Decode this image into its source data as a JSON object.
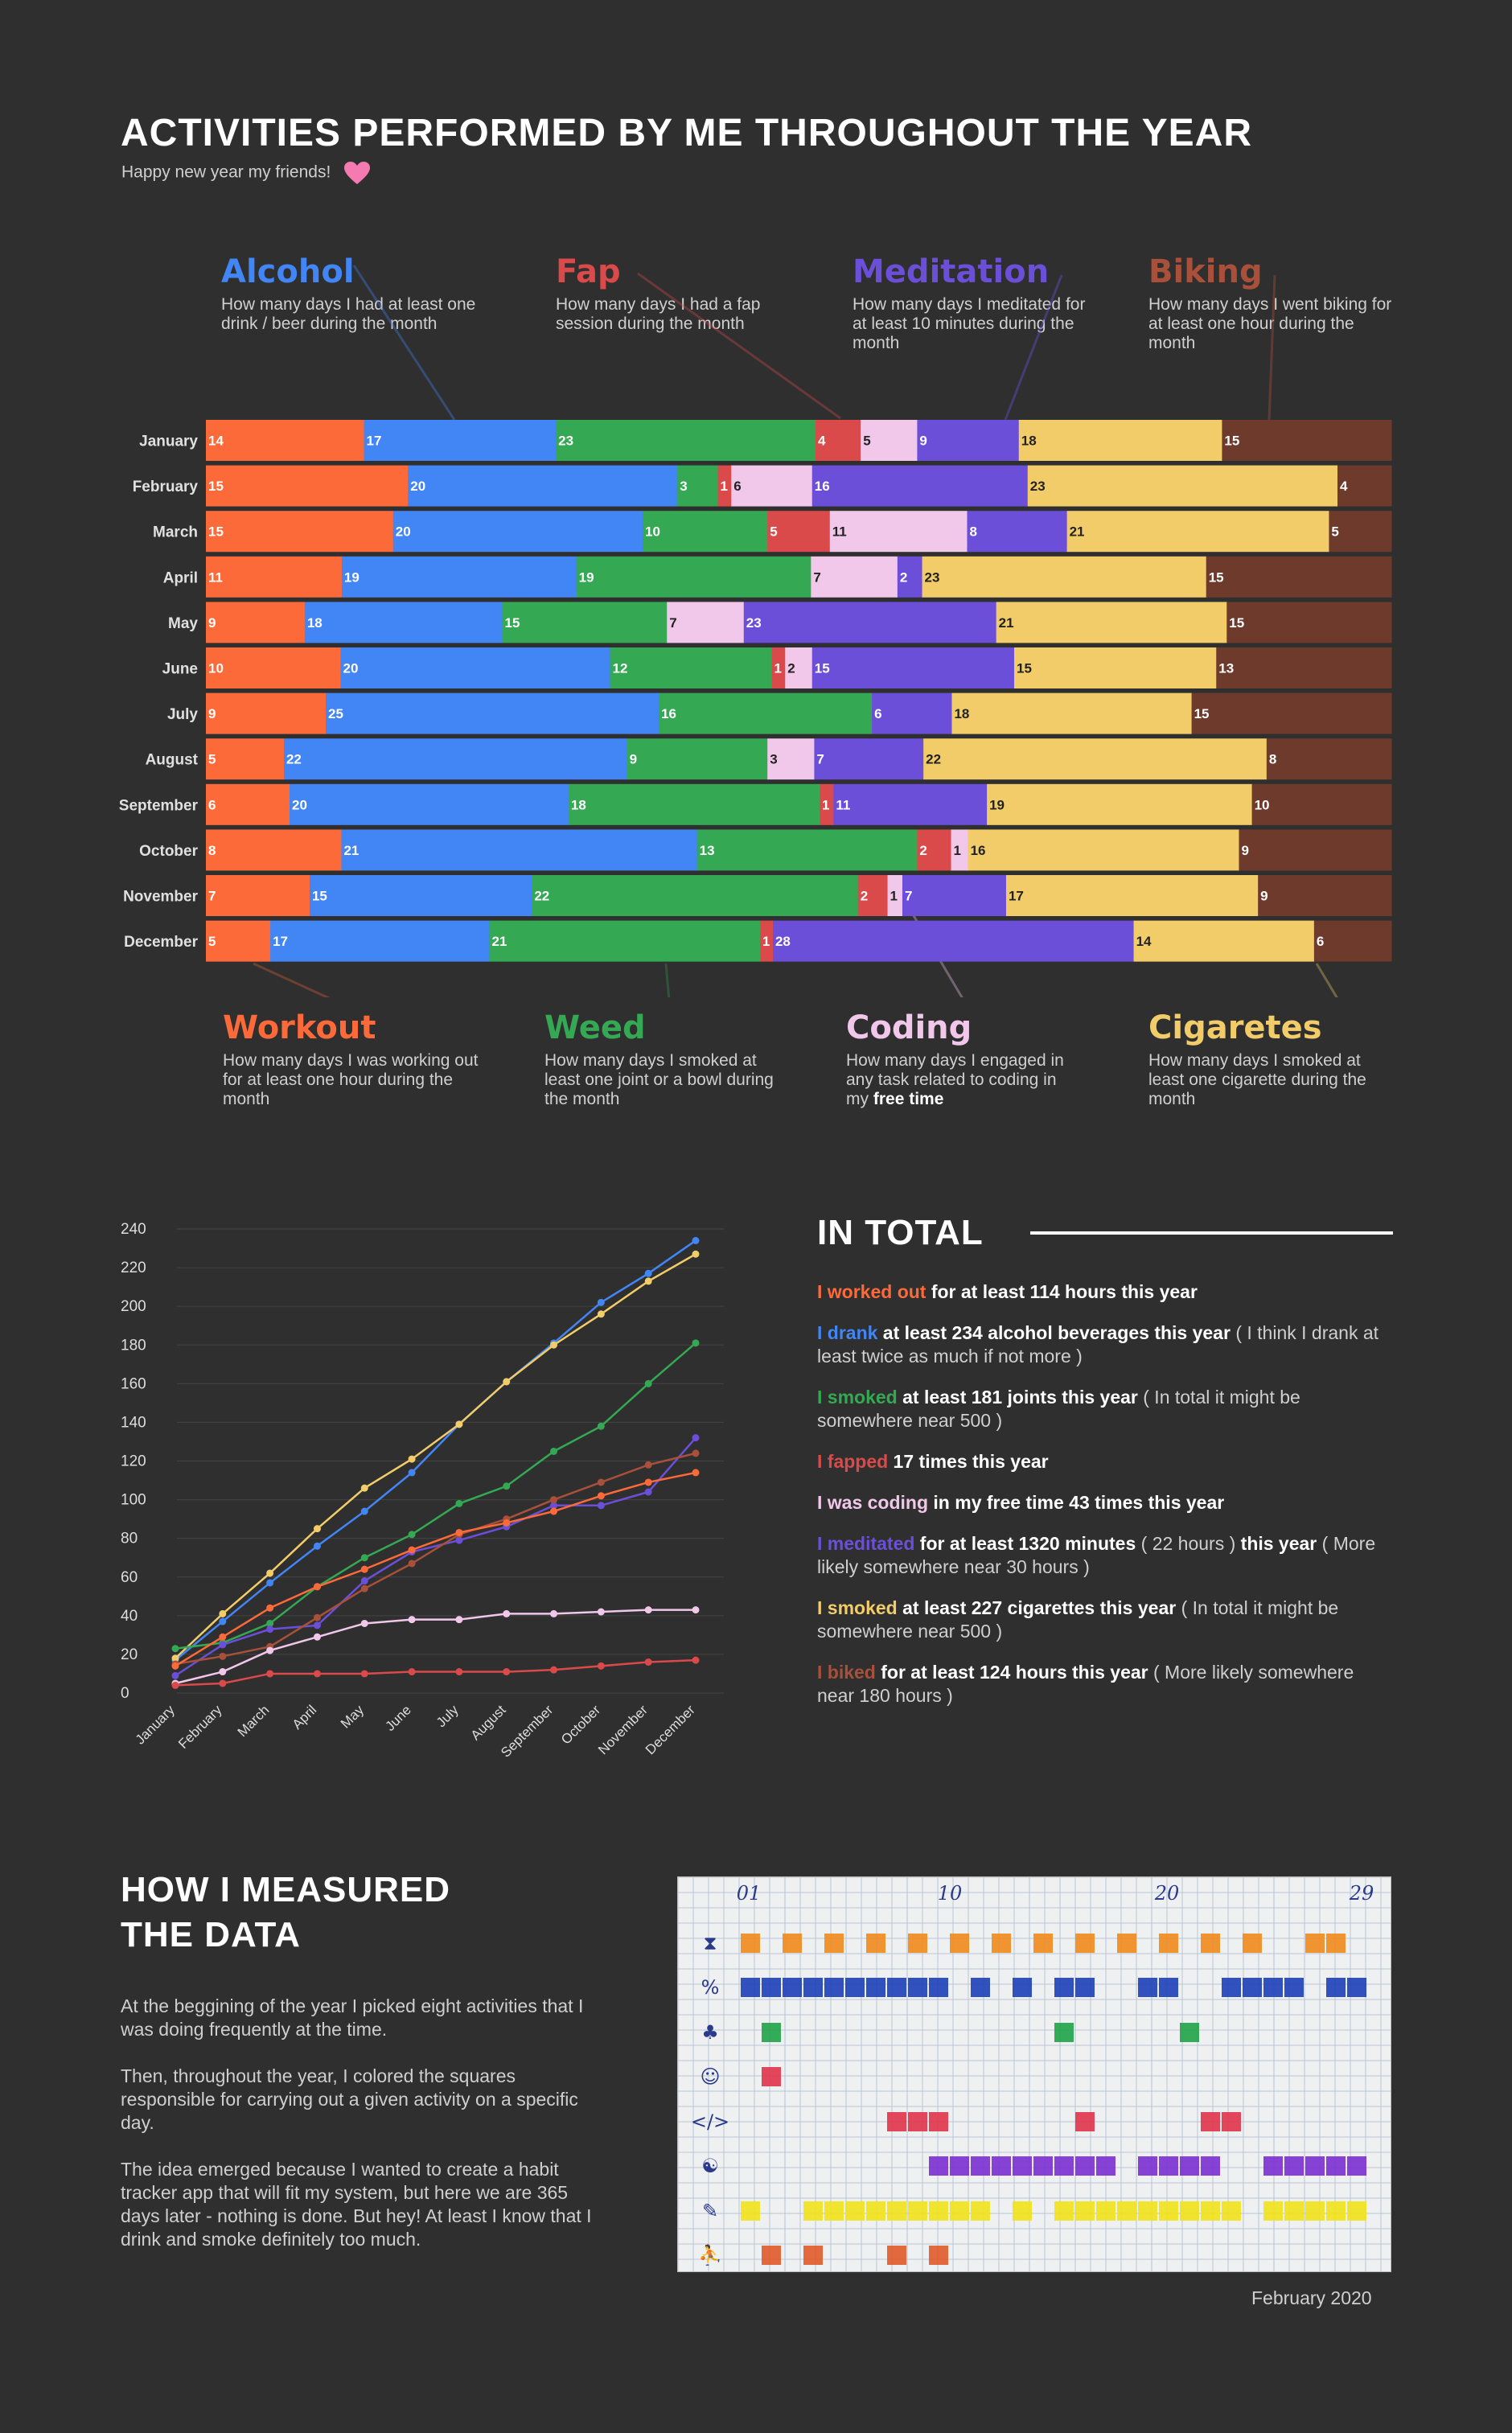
{
  "title": "ACTIVITIES PERFORMED BY ME THROUGHOUT THE YEAR",
  "subtitle": "Happy new year my friends!",
  "colors": {
    "workout": "#fd6a3a",
    "alcohol": "#4285f4",
    "weed": "#34a853",
    "fap": "#db4a4a",
    "coding": "#f1c7ea",
    "meditation": "#6b4fd8",
    "cigarettes": "#f1cc68",
    "biking": "#6d3a2c",
    "background": "#2f2f2f"
  },
  "categories_top": [
    {
      "name": "Alcohol",
      "color": "#4285f4",
      "desc": "How many days I had at least one drink / beer during the month"
    },
    {
      "name": "Fap",
      "color": "#db4a4a",
      "desc": "How many days I had a fap session during the month"
    },
    {
      "name": "Meditation",
      "color": "#6b4fd8",
      "desc": "How many days I meditated for at least 10 minutes during the month"
    },
    {
      "name": "Biking",
      "color": "#a8503a",
      "desc": "How many days I went biking for at least one hour during the month"
    }
  ],
  "categories_bottom": [
    {
      "name": "Workout",
      "color": "#fd6a3a",
      "desc": "How many days I was working out for at least one hour during the month"
    },
    {
      "name": "Weed",
      "color": "#34a853",
      "desc": "How many days I smoked at least one joint or a bowl during the month"
    },
    {
      "name": "Coding",
      "color": "#f1c7ea",
      "desc": "How many days I engaged in any task related to coding in my",
      "desc_bold": "free time"
    },
    {
      "name": "Cigaretes",
      "color": "#f1cc68",
      "desc": "How many days I smoked at least one cigarette during the month"
    }
  ],
  "chart_data": [
    {
      "type": "bar",
      "orientation": "horizontal",
      "stacked": true,
      "categories": [
        "January",
        "February",
        "March",
        "April",
        "May",
        "June",
        "July",
        "August",
        "September",
        "October",
        "November",
        "December"
      ],
      "series": [
        {
          "name": "Workout",
          "values": [
            14,
            15,
            15,
            11,
            9,
            10,
            9,
            5,
            6,
            8,
            7,
            5
          ]
        },
        {
          "name": "Alcohol",
          "values": [
            17,
            20,
            20,
            19,
            18,
            20,
            25,
            22,
            20,
            21,
            15,
            17
          ]
        },
        {
          "name": "Weed",
          "values": [
            23,
            3,
            10,
            19,
            15,
            12,
            16,
            9,
            18,
            13,
            22,
            21
          ]
        },
        {
          "name": "Fap",
          "values": [
            4,
            1,
            5,
            0,
            0,
            1,
            0,
            0,
            1,
            2,
            2,
            1
          ]
        },
        {
          "name": "Coding",
          "values": [
            5,
            6,
            11,
            7,
            7,
            2,
            0,
            3,
            0,
            1,
            1,
            0
          ]
        },
        {
          "name": "Meditation",
          "values": [
            9,
            16,
            8,
            2,
            23,
            15,
            6,
            7,
            11,
            0,
            7,
            28
          ]
        },
        {
          "name": "Cigaretes",
          "values": [
            18,
            23,
            21,
            23,
            21,
            15,
            18,
            22,
            19,
            16,
            17,
            14
          ]
        },
        {
          "name": "Biking",
          "values": [
            15,
            4,
            5,
            15,
            15,
            13,
            15,
            8,
            10,
            9,
            9,
            6
          ]
        }
      ]
    },
    {
      "type": "line",
      "categories": [
        "January",
        "February",
        "March",
        "April",
        "May",
        "June",
        "July",
        "August",
        "September",
        "October",
        "November",
        "December"
      ],
      "ylim": [
        0,
        240
      ],
      "yticks": [
        0,
        20,
        40,
        60,
        80,
        100,
        120,
        140,
        160,
        180,
        200,
        220,
        240
      ],
      "grid": true,
      "series": [
        {
          "name": "Alcohol",
          "values": [
            17,
            37,
            57,
            76,
            94,
            114,
            139,
            161,
            181,
            202,
            217,
            234
          ]
        },
        {
          "name": "Cigaretes",
          "values": [
            18,
            41,
            62,
            85,
            106,
            121,
            139,
            161,
            180,
            196,
            213,
            227
          ]
        },
        {
          "name": "Weed",
          "values": [
            23,
            26,
            36,
            55,
            70,
            82,
            98,
            107,
            125,
            138,
            160,
            181
          ]
        },
        {
          "name": "Meditation",
          "values": [
            9,
            25,
            33,
            35,
            58,
            73,
            79,
            86,
            97,
            97,
            104,
            132
          ]
        },
        {
          "name": "Biking",
          "values": [
            15,
            19,
            24,
            39,
            54,
            67,
            82,
            90,
            100,
            109,
            118,
            124
          ]
        },
        {
          "name": "Workout",
          "values": [
            14,
            29,
            44,
            55,
            64,
            74,
            83,
            88,
            94,
            102,
            109,
            114
          ]
        },
        {
          "name": "Coding",
          "values": [
            5,
            11,
            22,
            29,
            36,
            38,
            38,
            41,
            41,
            42,
            43,
            43
          ]
        },
        {
          "name": "Fap",
          "values": [
            4,
            5,
            10,
            10,
            10,
            11,
            11,
            11,
            12,
            14,
            16,
            17
          ]
        }
      ]
    }
  ],
  "total": {
    "heading": "IN TOTAL",
    "items": [
      {
        "color": "#fd6a3a",
        "lead": "I worked out",
        "bold": " for at least 114 hours this year",
        "rest": ""
      },
      {
        "color": "#4285f4",
        "lead": "I drank",
        "bold": " at least 234 alcohol beverages this year",
        "rest": " ( I think I drank at least twice as much if not more )"
      },
      {
        "color": "#34a853",
        "lead": "I smoked",
        "bold": " at least 181 joints this year",
        "rest": " ( In total it might be somewhere near 500 )"
      },
      {
        "color": "#db4a4a",
        "lead": "I fapped",
        "bold": " 17 times this year",
        "rest": ""
      },
      {
        "color": "#f1c7ea",
        "lead": "I was coding",
        "bold": " in my free time 43 times this year",
        "rest": ""
      },
      {
        "color": "#6b4fd8",
        "lead": "I meditated",
        "bold": " for at least 1320 minutes",
        "rest": " ( 22 hours ) ",
        "bold2": "this year",
        "rest2": " ( More likely somewhere near 30 hours )"
      },
      {
        "color": "#f1cc68",
        "lead": "I smoked",
        "bold": " at least 227 cigarettes this year",
        "rest": " ( In total it might be somewhere near 500 )"
      },
      {
        "color": "#a8503a",
        "lead": "I biked",
        "bold": " for at least 124 hours this year",
        "rest": " ( More likely somewhere near 180 hours )"
      }
    ]
  },
  "how": {
    "heading_line1": "HOW I MEASURED",
    "heading_line2": "THE DATA",
    "paragraphs": [
      "At the beggining of the year I picked eight activities that I was doing frequently at the time.",
      "Then, throughout the year, I colored the squares responsible for carrying out a given activity on a specific day.",
      "The idea emerged because I wanted to create a habit tracker app that will fit my system, but here we are 365 days later - nothing is done. But hey! At least I know that I drink and smoke definitely too much."
    ]
  },
  "photo": {
    "day_labels": [
      "01",
      "10",
      "20",
      "29"
    ],
    "caption": "February 2020"
  }
}
